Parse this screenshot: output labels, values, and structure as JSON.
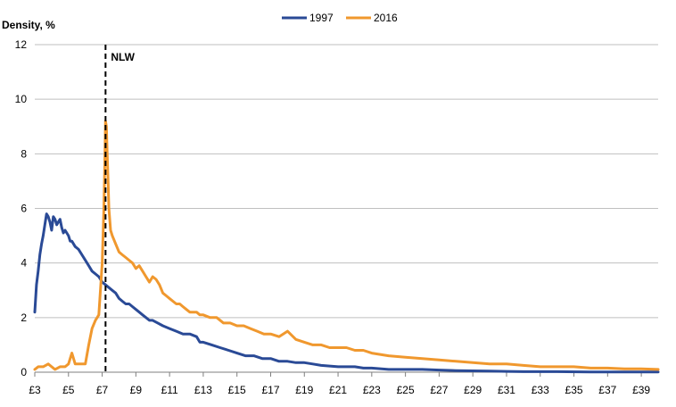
{
  "chart_data": {
    "type": "line",
    "title": "",
    "xlabel": "",
    "ylabel": "Density, %",
    "xlim": [
      3,
      40
    ],
    "ylim": [
      0,
      12
    ],
    "y_ticks": [
      0,
      2,
      4,
      6,
      8,
      10,
      12
    ],
    "x_tick_labels": [
      "£3",
      "£5",
      "£7",
      "£9",
      "£11",
      "£13",
      "£15",
      "£17",
      "£19",
      "£21",
      "£23",
      "£25",
      "£27",
      "£29",
      "£31",
      "£33",
      "£35",
      "£37",
      "£39"
    ],
    "x_tick_values": [
      3,
      5,
      7,
      9,
      11,
      13,
      15,
      17,
      19,
      21,
      23,
      25,
      27,
      29,
      31,
      33,
      35,
      37,
      39
    ],
    "grid": true,
    "legend_position": "top-center",
    "annotations": [
      {
        "label": "NLW",
        "x": 7.2
      }
    ],
    "colors": {
      "s1997": "#2a4a96",
      "s2016": "#f0982e",
      "grid": "#bfbfbf",
      "axis": "#7f7f7f"
    },
    "series": [
      {
        "name": "1997",
        "x": [
          3.0,
          3.1,
          3.2,
          3.3,
          3.4,
          3.5,
          3.6,
          3.7,
          3.8,
          3.9,
          4.0,
          4.1,
          4.2,
          4.3,
          4.4,
          4.5,
          4.6,
          4.7,
          4.8,
          4.9,
          5.0,
          5.1,
          5.2,
          5.4,
          5.6,
          5.8,
          6.0,
          6.2,
          6.4,
          6.6,
          6.8,
          7.0,
          7.2,
          7.4,
          7.6,
          7.8,
          8.0,
          8.2,
          8.4,
          8.6,
          8.8,
          9.0,
          9.2,
          9.4,
          9.6,
          9.8,
          10.0,
          10.3,
          10.6,
          11.0,
          11.4,
          11.8,
          12.2,
          12.6,
          12.8,
          13.0,
          13.5,
          14.0,
          14.5,
          15.0,
          15.5,
          16.0,
          16.5,
          17.0,
          17.5,
          18.0,
          18.5,
          19.0,
          19.5,
          20.0,
          21.0,
          22.0,
          22.5,
          23.0,
          24.0,
          25.0,
          26.0,
          27.0,
          28.0,
          29.0,
          30.0,
          31.0,
          32.0,
          34.0,
          36.0,
          38.0,
          40.0
        ],
        "values": [
          2.2,
          3.2,
          3.7,
          4.3,
          4.7,
          5.0,
          5.4,
          5.8,
          5.7,
          5.5,
          5.2,
          5.7,
          5.6,
          5.4,
          5.5,
          5.6,
          5.3,
          5.1,
          5.2,
          5.1,
          5.0,
          4.8,
          4.8,
          4.6,
          4.5,
          4.3,
          4.1,
          3.9,
          3.7,
          3.6,
          3.5,
          3.3,
          3.2,
          3.1,
          3.0,
          2.9,
          2.7,
          2.6,
          2.5,
          2.5,
          2.4,
          2.3,
          2.2,
          2.1,
          2.0,
          1.9,
          1.9,
          1.8,
          1.7,
          1.6,
          1.5,
          1.4,
          1.4,
          1.3,
          1.1,
          1.1,
          1.0,
          0.9,
          0.8,
          0.7,
          0.6,
          0.6,
          0.5,
          0.5,
          0.4,
          0.4,
          0.35,
          0.35,
          0.3,
          0.25,
          0.2,
          0.2,
          0.15,
          0.15,
          0.1,
          0.1,
          0.1,
          0.08,
          0.06,
          0.05,
          0.04,
          0.03,
          0.02,
          0.02,
          0.01,
          0.01,
          0.01
        ]
      },
      {
        "name": "2016",
        "x": [
          3.0,
          3.2,
          3.5,
          3.8,
          4.0,
          4.2,
          4.5,
          4.8,
          5.0,
          5.2,
          5.4,
          5.5,
          5.7,
          6.0,
          6.2,
          6.4,
          6.6,
          6.8,
          7.0,
          7.1,
          7.15,
          7.2,
          7.25,
          7.3,
          7.35,
          7.4,
          7.5,
          7.6,
          7.8,
          8.0,
          8.2,
          8.4,
          8.6,
          8.8,
          9.0,
          9.2,
          9.4,
          9.6,
          9.8,
          10.0,
          10.2,
          10.4,
          10.6,
          10.8,
          11.0,
          11.2,
          11.4,
          11.6,
          11.8,
          12.0,
          12.2,
          12.4,
          12.6,
          12.8,
          13.0,
          13.4,
          13.8,
          14.2,
          14.6,
          15.0,
          15.4,
          15.8,
          16.2,
          16.6,
          17.0,
          17.5,
          18.0,
          18.5,
          19.0,
          19.5,
          20.0,
          20.5,
          21.0,
          21.5,
          22.0,
          22.5,
          23.0,
          24.0,
          25.0,
          26.0,
          27.0,
          28.0,
          29.0,
          30.0,
          31.0,
          32.0,
          33.0,
          34.0,
          35.0,
          36.0,
          37.0,
          38.0,
          39.0,
          40.0
        ],
        "values": [
          0.1,
          0.2,
          0.2,
          0.3,
          0.2,
          0.1,
          0.2,
          0.2,
          0.3,
          0.7,
          0.3,
          0.3,
          0.3,
          0.3,
          1.0,
          1.6,
          1.9,
          2.1,
          4.0,
          6.0,
          7.5,
          9.2,
          9.0,
          8.0,
          7.0,
          6.0,
          5.2,
          5.0,
          4.7,
          4.4,
          4.3,
          4.2,
          4.1,
          4.0,
          3.8,
          3.9,
          3.7,
          3.5,
          3.3,
          3.5,
          3.4,
          3.2,
          2.9,
          2.8,
          2.7,
          2.6,
          2.5,
          2.5,
          2.4,
          2.3,
          2.2,
          2.2,
          2.2,
          2.1,
          2.1,
          2.0,
          2.0,
          1.8,
          1.8,
          1.7,
          1.7,
          1.6,
          1.5,
          1.4,
          1.4,
          1.3,
          1.5,
          1.2,
          1.1,
          1.0,
          1.0,
          0.9,
          0.9,
          0.9,
          0.8,
          0.8,
          0.7,
          0.6,
          0.55,
          0.5,
          0.45,
          0.4,
          0.35,
          0.3,
          0.3,
          0.25,
          0.2,
          0.2,
          0.2,
          0.15,
          0.15,
          0.12,
          0.12,
          0.1
        ]
      }
    ]
  }
}
